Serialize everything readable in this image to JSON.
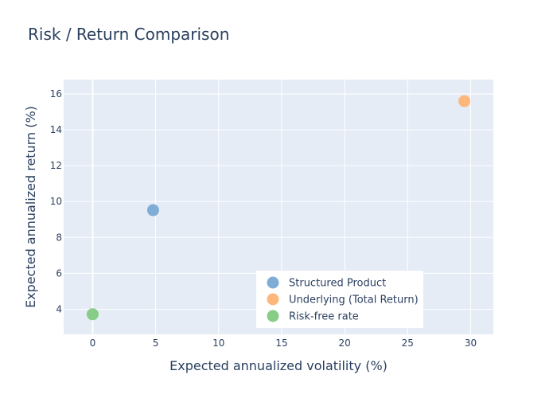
{
  "chart_data": {
    "type": "scatter",
    "title": "Risk / Return Comparison",
    "xlabel": "Expected annualized volatility (%)",
    "ylabel": "Expected annualized return (%)",
    "xlim": [
      -2.3,
      31.8
    ],
    "ylim": [
      2.6,
      16.8
    ],
    "xticks": [
      0,
      5,
      10,
      15,
      20,
      25,
      30
    ],
    "yticks": [
      4,
      6,
      8,
      10,
      12,
      14,
      16
    ],
    "grid": true,
    "legend_position": "bottom-right",
    "plot_bgcolor": "#e5ecf6",
    "series": [
      {
        "name": "Structured Product",
        "color": "#7fadd6",
        "x": [
          4.8
        ],
        "y": [
          9.52
        ]
      },
      {
        "name": "Underlying (Total Return)",
        "color": "#fdb77c",
        "x": [
          29.5
        ],
        "y": [
          15.6
        ]
      },
      {
        "name": "Risk-free rate",
        "color": "#87cc87",
        "x": [
          0.0
        ],
        "y": [
          3.72
        ]
      }
    ]
  }
}
